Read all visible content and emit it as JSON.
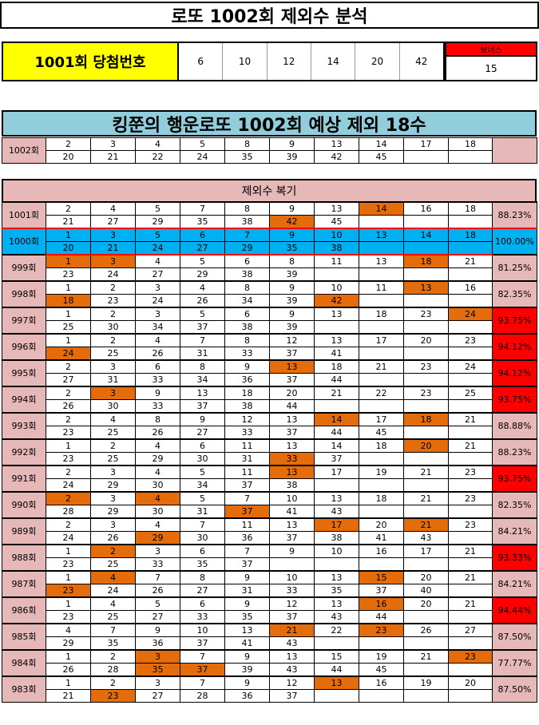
{
  "title": "로또 1002회 제외수 분석",
  "winning": {
    "label": "1001회 당첨번호",
    "numbers": [
      "6",
      "10",
      "12",
      "14",
      "20",
      "42"
    ],
    "bonus_label": "보너스",
    "bonus": "15"
  },
  "prediction": {
    "title": "킹쭌의 행운로또 1002회 예상 제외 18수",
    "label": "1002회",
    "row1": [
      "2",
      "3",
      "4",
      "5",
      "8",
      "9",
      "13",
      "14",
      "17",
      "18"
    ],
    "row2": [
      "20",
      "21",
      "22",
      "24",
      "35",
      "39",
      "42",
      "45",
      "",
      ""
    ]
  },
  "review": {
    "title": "제외수 복기",
    "rows": [
      {
        "label": "1001회",
        "top": [
          "2",
          "4",
          "5",
          "7",
          "8",
          "9",
          "13",
          "14",
          "16",
          "18"
        ],
        "bottom": [
          "21",
          "27",
          "29",
          "35",
          "38",
          "42",
          "45",
          "",
          "",
          ""
        ],
        "hl_top": [
          7
        ],
        "hl_bottom": [
          5
        ],
        "pct": "88.23%",
        "red": false,
        "blue": false
      },
      {
        "label": "1000회",
        "top": [
          "1",
          "3",
          "5",
          "6",
          "7",
          "9",
          "10",
          "13",
          "14",
          "18"
        ],
        "bottom": [
          "20",
          "21",
          "24",
          "27",
          "29",
          "35",
          "38",
          "",
          "",
          ""
        ],
        "hl_top": [],
        "hl_bottom": [],
        "pct": "100.00%",
        "red": false,
        "blue": true
      },
      {
        "label": "999회",
        "top": [
          "1",
          "3",
          "4",
          "5",
          "6",
          "8",
          "11",
          "13",
          "18",
          "21"
        ],
        "bottom": [
          "23",
          "24",
          "27",
          "29",
          "38",
          "39",
          "",
          "",
          "",
          ""
        ],
        "hl_top": [
          0,
          1,
          8
        ],
        "hl_bottom": [],
        "pct": "81.25%",
        "red": false,
        "blue": false
      },
      {
        "label": "998회",
        "top": [
          "1",
          "2",
          "3",
          "4",
          "8",
          "9",
          "10",
          "11",
          "13",
          "16"
        ],
        "bottom": [
          "18",
          "23",
          "24",
          "26",
          "34",
          "39",
          "42",
          "",
          "",
          ""
        ],
        "hl_top": [
          8
        ],
        "hl_bottom": [
          0,
          6
        ],
        "pct": "82.35%",
        "red": false,
        "blue": false
      },
      {
        "label": "997회",
        "top": [
          "1",
          "2",
          "3",
          "5",
          "6",
          "9",
          "13",
          "18",
          "23",
          "24"
        ],
        "bottom": [
          "25",
          "30",
          "34",
          "37",
          "38",
          "39",
          "",
          "",
          "",
          ""
        ],
        "hl_top": [
          9
        ],
        "hl_bottom": [],
        "pct": "93.75%",
        "red": true,
        "blue": false
      },
      {
        "label": "996회",
        "top": [
          "1",
          "2",
          "4",
          "7",
          "8",
          "12",
          "13",
          "17",
          "20",
          "23"
        ],
        "bottom": [
          "24",
          "25",
          "26",
          "31",
          "33",
          "37",
          "41",
          "",
          "",
          ""
        ],
        "hl_top": [],
        "hl_bottom": [
          0
        ],
        "pct": "94.12%",
        "red": true,
        "blue": false
      },
      {
        "label": "995회",
        "top": [
          "2",
          "3",
          "6",
          "8",
          "9",
          "13",
          "18",
          "21",
          "23",
          "24"
        ],
        "bottom": [
          "27",
          "31",
          "33",
          "34",
          "36",
          "37",
          "44",
          "",
          "",
          ""
        ],
        "hl_top": [
          5
        ],
        "hl_bottom": [],
        "pct": "94.12%",
        "red": true,
        "blue": false
      },
      {
        "label": "994회",
        "top": [
          "2",
          "3",
          "9",
          "13",
          "18",
          "20",
          "21",
          "22",
          "23",
          "25"
        ],
        "bottom": [
          "26",
          "30",
          "33",
          "37",
          "38",
          "44",
          "",
          "",
          "",
          ""
        ],
        "hl_top": [
          1
        ],
        "hl_bottom": [],
        "pct": "93.75%",
        "red": true,
        "blue": false
      },
      {
        "label": "993회",
        "top": [
          "2",
          "4",
          "8",
          "9",
          "12",
          "13",
          "14",
          "17",
          "18",
          "21"
        ],
        "bottom": [
          "23",
          "25",
          "26",
          "27",
          "33",
          "37",
          "44",
          "45",
          "",
          ""
        ],
        "hl_top": [
          6,
          8
        ],
        "hl_bottom": [],
        "pct": "88.88%",
        "red": false,
        "blue": false
      },
      {
        "label": "992회",
        "top": [
          "1",
          "2",
          "4",
          "6",
          "11",
          "13",
          "14",
          "18",
          "20",
          "21"
        ],
        "bottom": [
          "23",
          "25",
          "29",
          "30",
          "31",
          "33",
          "37",
          "",
          "",
          ""
        ],
        "hl_top": [
          8
        ],
        "hl_bottom": [
          5
        ],
        "pct": "88.23%",
        "red": false,
        "blue": false
      },
      {
        "label": "991회",
        "top": [
          "2",
          "3",
          "4",
          "5",
          "11",
          "13",
          "17",
          "19",
          "21",
          "23"
        ],
        "bottom": [
          "24",
          "29",
          "30",
          "34",
          "37",
          "38",
          "",
          "",
          "",
          ""
        ],
        "hl_top": [
          5
        ],
        "hl_bottom": [],
        "pct": "93.75%",
        "red": true,
        "blue": false
      },
      {
        "label": "990회",
        "top": [
          "2",
          "3",
          "4",
          "5",
          "7",
          "10",
          "13",
          "18",
          "21",
          "23"
        ],
        "bottom": [
          "28",
          "29",
          "30",
          "31",
          "37",
          "41",
          "43",
          "",
          "",
          ""
        ],
        "hl_top": [
          0,
          2
        ],
        "hl_bottom": [
          4
        ],
        "pct": "82.35%",
        "red": false,
        "blue": false
      },
      {
        "label": "989회",
        "top": [
          "2",
          "3",
          "4",
          "7",
          "11",
          "13",
          "17",
          "20",
          "21",
          "23"
        ],
        "bottom": [
          "24",
          "26",
          "29",
          "30",
          "36",
          "37",
          "38",
          "41",
          "43",
          ""
        ],
        "hl_top": [
          6,
          8
        ],
        "hl_bottom": [
          2
        ],
        "pct": "84.21%",
        "red": false,
        "blue": false
      },
      {
        "label": "988회",
        "top": [
          "1",
          "2",
          "3",
          "6",
          "7",
          "9",
          "10",
          "16",
          "17",
          "21"
        ],
        "bottom": [
          "23",
          "25",
          "33",
          "35",
          "37",
          "",
          "",
          "",
          "",
          ""
        ],
        "hl_top": [
          1
        ],
        "hl_bottom": [],
        "pct": "93.33%",
        "red": true,
        "blue": false
      },
      {
        "label": "987회",
        "top": [
          "1",
          "4",
          "7",
          "8",
          "9",
          "10",
          "13",
          "15",
          "20",
          "21"
        ],
        "bottom": [
          "23",
          "24",
          "26",
          "27",
          "31",
          "33",
          "35",
          "37",
          "40",
          ""
        ],
        "hl_top": [
          1,
          7
        ],
        "hl_bottom": [
          0
        ],
        "pct": "84.21%",
        "red": false,
        "blue": false
      },
      {
        "label": "986회",
        "top": [
          "1",
          "4",
          "5",
          "6",
          "9",
          "12",
          "13",
          "16",
          "20",
          "21"
        ],
        "bottom": [
          "23",
          "25",
          "27",
          "33",
          "35",
          "37",
          "43",
          "44",
          "",
          ""
        ],
        "hl_top": [
          7
        ],
        "hl_bottom": [],
        "pct": "94.44%",
        "red": true,
        "blue": false
      },
      {
        "label": "985회",
        "top": [
          "4",
          "7",
          "9",
          "10",
          "13",
          "21",
          "22",
          "23",
          "26",
          "27"
        ],
        "bottom": [
          "29",
          "35",
          "36",
          "37",
          "41",
          "43",
          "",
          "",
          "",
          ""
        ],
        "hl_top": [
          5,
          7
        ],
        "hl_bottom": [],
        "pct": "87.50%",
        "red": false,
        "blue": false
      },
      {
        "label": "984회",
        "top": [
          "1",
          "2",
          "3",
          "7",
          "9",
          "13",
          "15",
          "19",
          "21",
          "23"
        ],
        "bottom": [
          "26",
          "28",
          "35",
          "37",
          "39",
          "43",
          "44",
          "45",
          "",
          ""
        ],
        "hl_top": [
          2,
          9
        ],
        "hl_bottom": [
          2,
          3
        ],
        "pct": "77.77%",
        "red": false,
        "blue": false
      },
      {
        "label": "983회",
        "top": [
          "1",
          "2",
          "3",
          "7",
          "9",
          "12",
          "13",
          "16",
          "19",
          "20"
        ],
        "bottom": [
          "21",
          "23",
          "27",
          "28",
          "36",
          "37",
          "",
          "",
          "",
          ""
        ],
        "hl_top": [
          6
        ],
        "hl_bottom": [
          1
        ],
        "pct": "87.50%",
        "red": false,
        "blue": false
      }
    ]
  }
}
